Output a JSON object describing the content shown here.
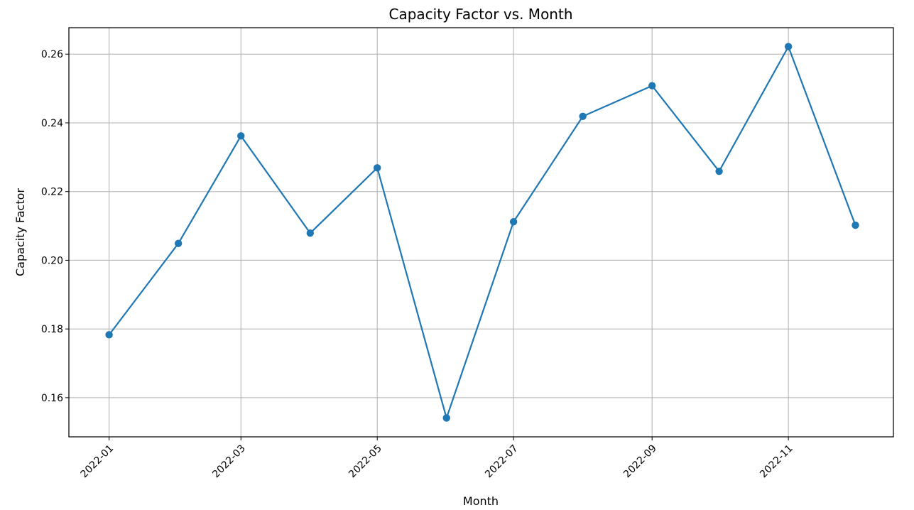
{
  "chart_data": {
    "type": "line",
    "title": "Capacity Factor vs. Month",
    "xlabel": "Month",
    "ylabel": "Capacity Factor",
    "x": [
      "2022-01",
      "2022-02",
      "2022-03",
      "2022-04",
      "2022-05",
      "2022-06",
      "2022-07",
      "2022-08",
      "2022-09",
      "2022-10",
      "2022-11",
      "2022-12"
    ],
    "series": [
      {
        "values": [
          0.1783,
          0.2049,
          0.2362,
          0.2079,
          0.2269,
          0.1541,
          0.2112,
          0.2419,
          0.2508,
          0.2259,
          0.2622,
          0.2102
        ],
        "color": "#1f77b4",
        "marker": "circle"
      }
    ],
    "x_ticks": [
      "2022-01",
      "2022-03",
      "2022-05",
      "2022-07",
      "2022-09",
      "2022-11"
    ],
    "y_ticks": [
      "0.16",
      "0.18",
      "0.20",
      "0.22",
      "0.24",
      "0.26"
    ],
    "y_tick_values": [
      0.16,
      0.18,
      0.2,
      0.22,
      0.24,
      0.26
    ],
    "xlim": [
      "2021-12-14",
      "2022-12-18"
    ],
    "ylim": [
      0.1486,
      0.2677
    ],
    "grid": true,
    "legend": "none"
  }
}
